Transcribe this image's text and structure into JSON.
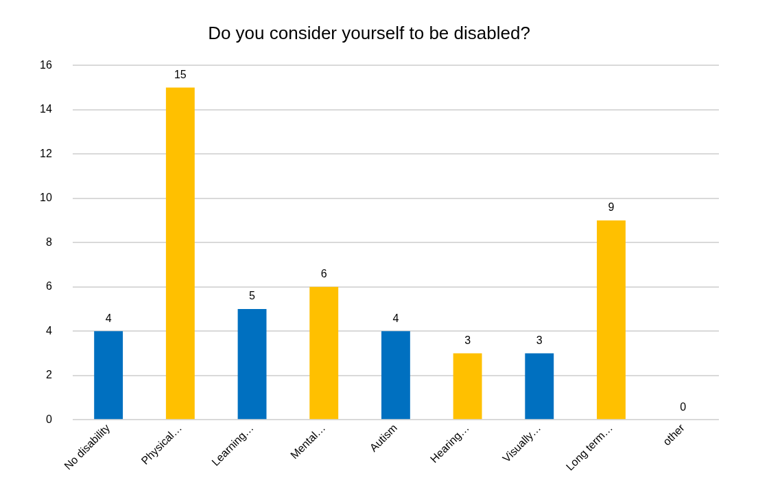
{
  "chart_data": {
    "type": "bar",
    "title": "Do you consider yourself to be disabled?",
    "categories": [
      "No disability",
      "Physical…",
      "Learning…",
      "Mental…",
      "Autism",
      "Hearing…",
      "Visually…",
      "Long term…",
      "other"
    ],
    "values": [
      4,
      15,
      5,
      6,
      4,
      3,
      3,
      9,
      0
    ],
    "colors": [
      "#0070c0",
      "#ffc000",
      "#0070c0",
      "#ffc000",
      "#0070c0",
      "#ffc000",
      "#0070c0",
      "#ffc000",
      "#0070c0"
    ],
    "ylim": [
      0,
      16
    ],
    "yticks": [
      0,
      2,
      4,
      6,
      8,
      10,
      12,
      14,
      16
    ],
    "grid": "y",
    "data_labels": true,
    "legend": false
  }
}
